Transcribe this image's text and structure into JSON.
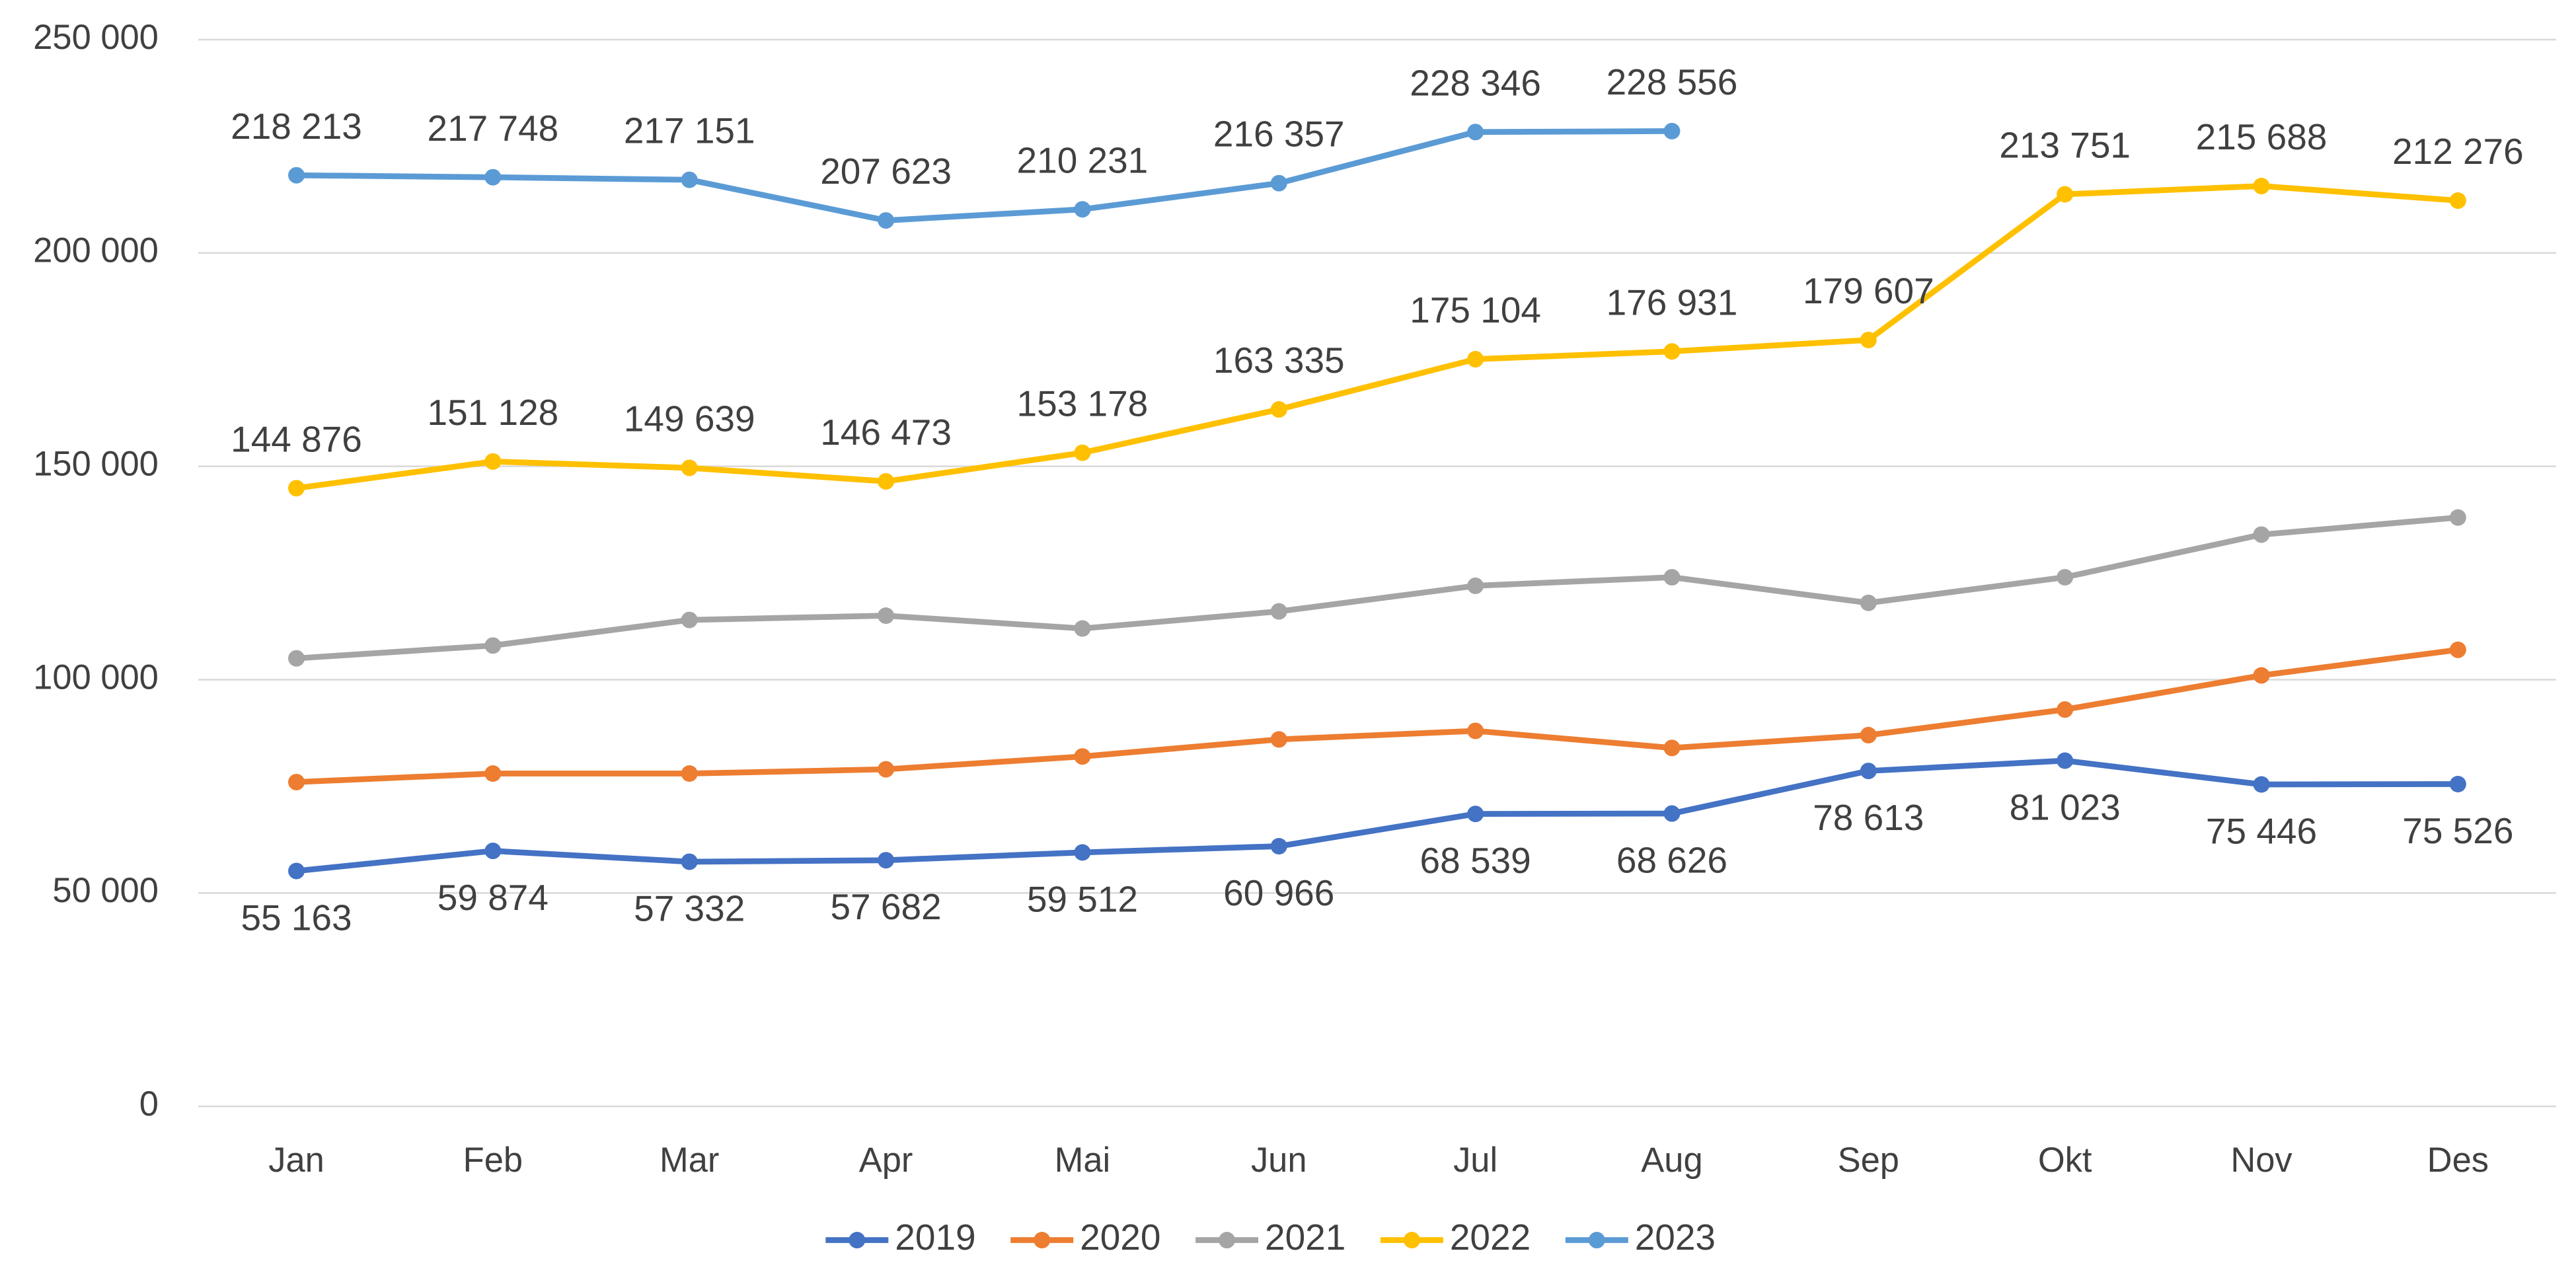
{
  "chart_data": {
    "type": "line",
    "categories": [
      "Jan",
      "Feb",
      "Mar",
      "Apr",
      "Mai",
      "Jun",
      "Jul",
      "Aug",
      "Sep",
      "Okt",
      "Nov",
      "Des"
    ],
    "ylim": [
      0,
      250000
    ],
    "yticks": [
      0,
      {
        "value": 50000,
        "label": "50 000"
      },
      {
        "value": 100000,
        "label": "100 000"
      },
      {
        "value": 150000,
        "label": "150 000"
      },
      {
        "value": 200000,
        "label": "200 000"
      },
      {
        "value": 250000,
        "label": "250 000"
      }
    ],
    "grid": true,
    "legend": "bottom",
    "series": [
      {
        "name": "2019",
        "color": "#4472c4",
        "values": [
          55163,
          59874,
          57332,
          57682,
          59512,
          60966,
          68539,
          68626,
          78613,
          81023,
          75446,
          75526
        ],
        "value_labels": [
          "55 163",
          "59 874",
          "57 332",
          "57 682",
          "59 512",
          "60 966",
          "68 539",
          "68 626",
          "78 613",
          "81 023",
          "75 446",
          "75 526"
        ]
      },
      {
        "name": "2020",
        "color": "#ed7d31",
        "values": [
          76000,
          78000,
          78000,
          79000,
          82000,
          86000,
          88000,
          84000,
          87000,
          93000,
          101000,
          107000
        ]
      },
      {
        "name": "2021",
        "color": "#a5a5a5",
        "values": [
          105000,
          108000,
          114000,
          115000,
          112000,
          116000,
          122000,
          124000,
          118000,
          124000,
          134000,
          138000
        ]
      },
      {
        "name": "2022",
        "color": "#ffc000",
        "values": [
          144876,
          151128,
          149639,
          146473,
          153178,
          163335,
          175104,
          176931,
          179607,
          213751,
          215688,
          212276
        ],
        "value_labels": [
          "144 876",
          "151 128",
          "149 639",
          "146 473",
          "153 178",
          "163 335",
          "175 104",
          "176 931",
          "179 607",
          "213 751",
          "215 688",
          "212 276"
        ]
      },
      {
        "name": "2023",
        "color": "#5b9bd5",
        "values": [
          218213,
          217748,
          217151,
          207623,
          210231,
          216357,
          228346,
          228556,
          null,
          null,
          null,
          null
        ],
        "value_labels": [
          "218 213",
          "217 748",
          "217 151",
          "207 623",
          "210 231",
          "216 357",
          "228 346",
          "228 556",
          null,
          null,
          null,
          null
        ]
      }
    ]
  }
}
